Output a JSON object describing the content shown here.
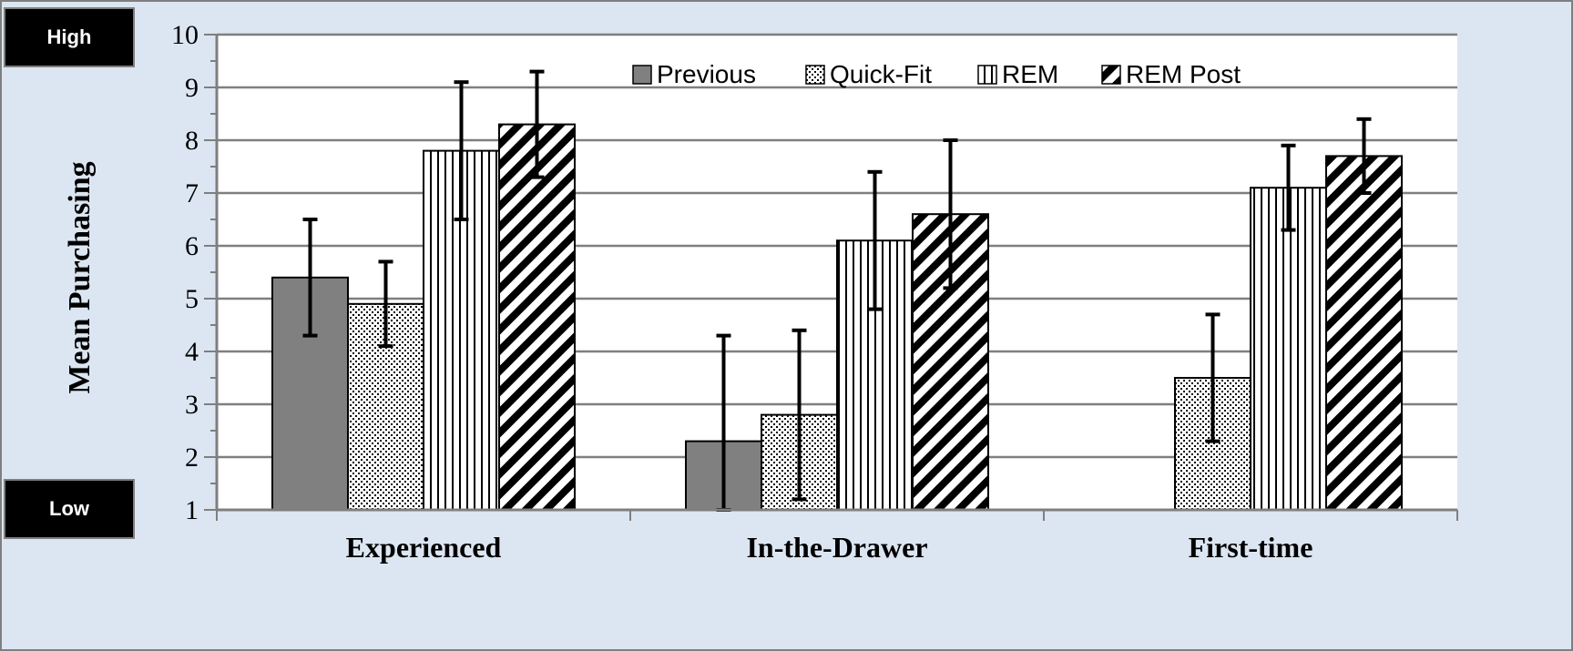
{
  "badges": {
    "high": "High",
    "low": "Low"
  },
  "chart_data": {
    "type": "bar",
    "title": "",
    "xlabel": "",
    "ylabel": "Mean Purchasing",
    "ylim": [
      1,
      10
    ],
    "yticks": [
      1,
      2,
      3,
      4,
      5,
      6,
      7,
      8,
      9,
      10
    ],
    "grid": true,
    "legend_position": "top",
    "categories": [
      "Experienced",
      "In-the-Drawer",
      "First-time"
    ],
    "series": [
      {
        "name": "Previous",
        "values": [
          5.4,
          2.3,
          null
        ],
        "error": [
          1.1,
          2.0,
          null
        ],
        "pattern": "solid-gray"
      },
      {
        "name": "Quick-Fit",
        "values": [
          4.9,
          2.8,
          3.5
        ],
        "error": [
          0.8,
          1.6,
          1.2
        ],
        "pattern": "dots"
      },
      {
        "name": "REM",
        "values": [
          7.8,
          6.1,
          7.1
        ],
        "error": [
          1.3,
          1.3,
          0.8
        ],
        "pattern": "vertical-stripes"
      },
      {
        "name": "REM Post",
        "values": [
          8.3,
          6.6,
          7.7
        ],
        "error": [
          1.0,
          1.4,
          0.7
        ],
        "pattern": "diagonal-stripes"
      }
    ],
    "colors": {
      "previous_fill": "#808080",
      "background": "#dce6f2",
      "plot_area": "#ffffff",
      "grid": "#7f7f7f"
    }
  }
}
